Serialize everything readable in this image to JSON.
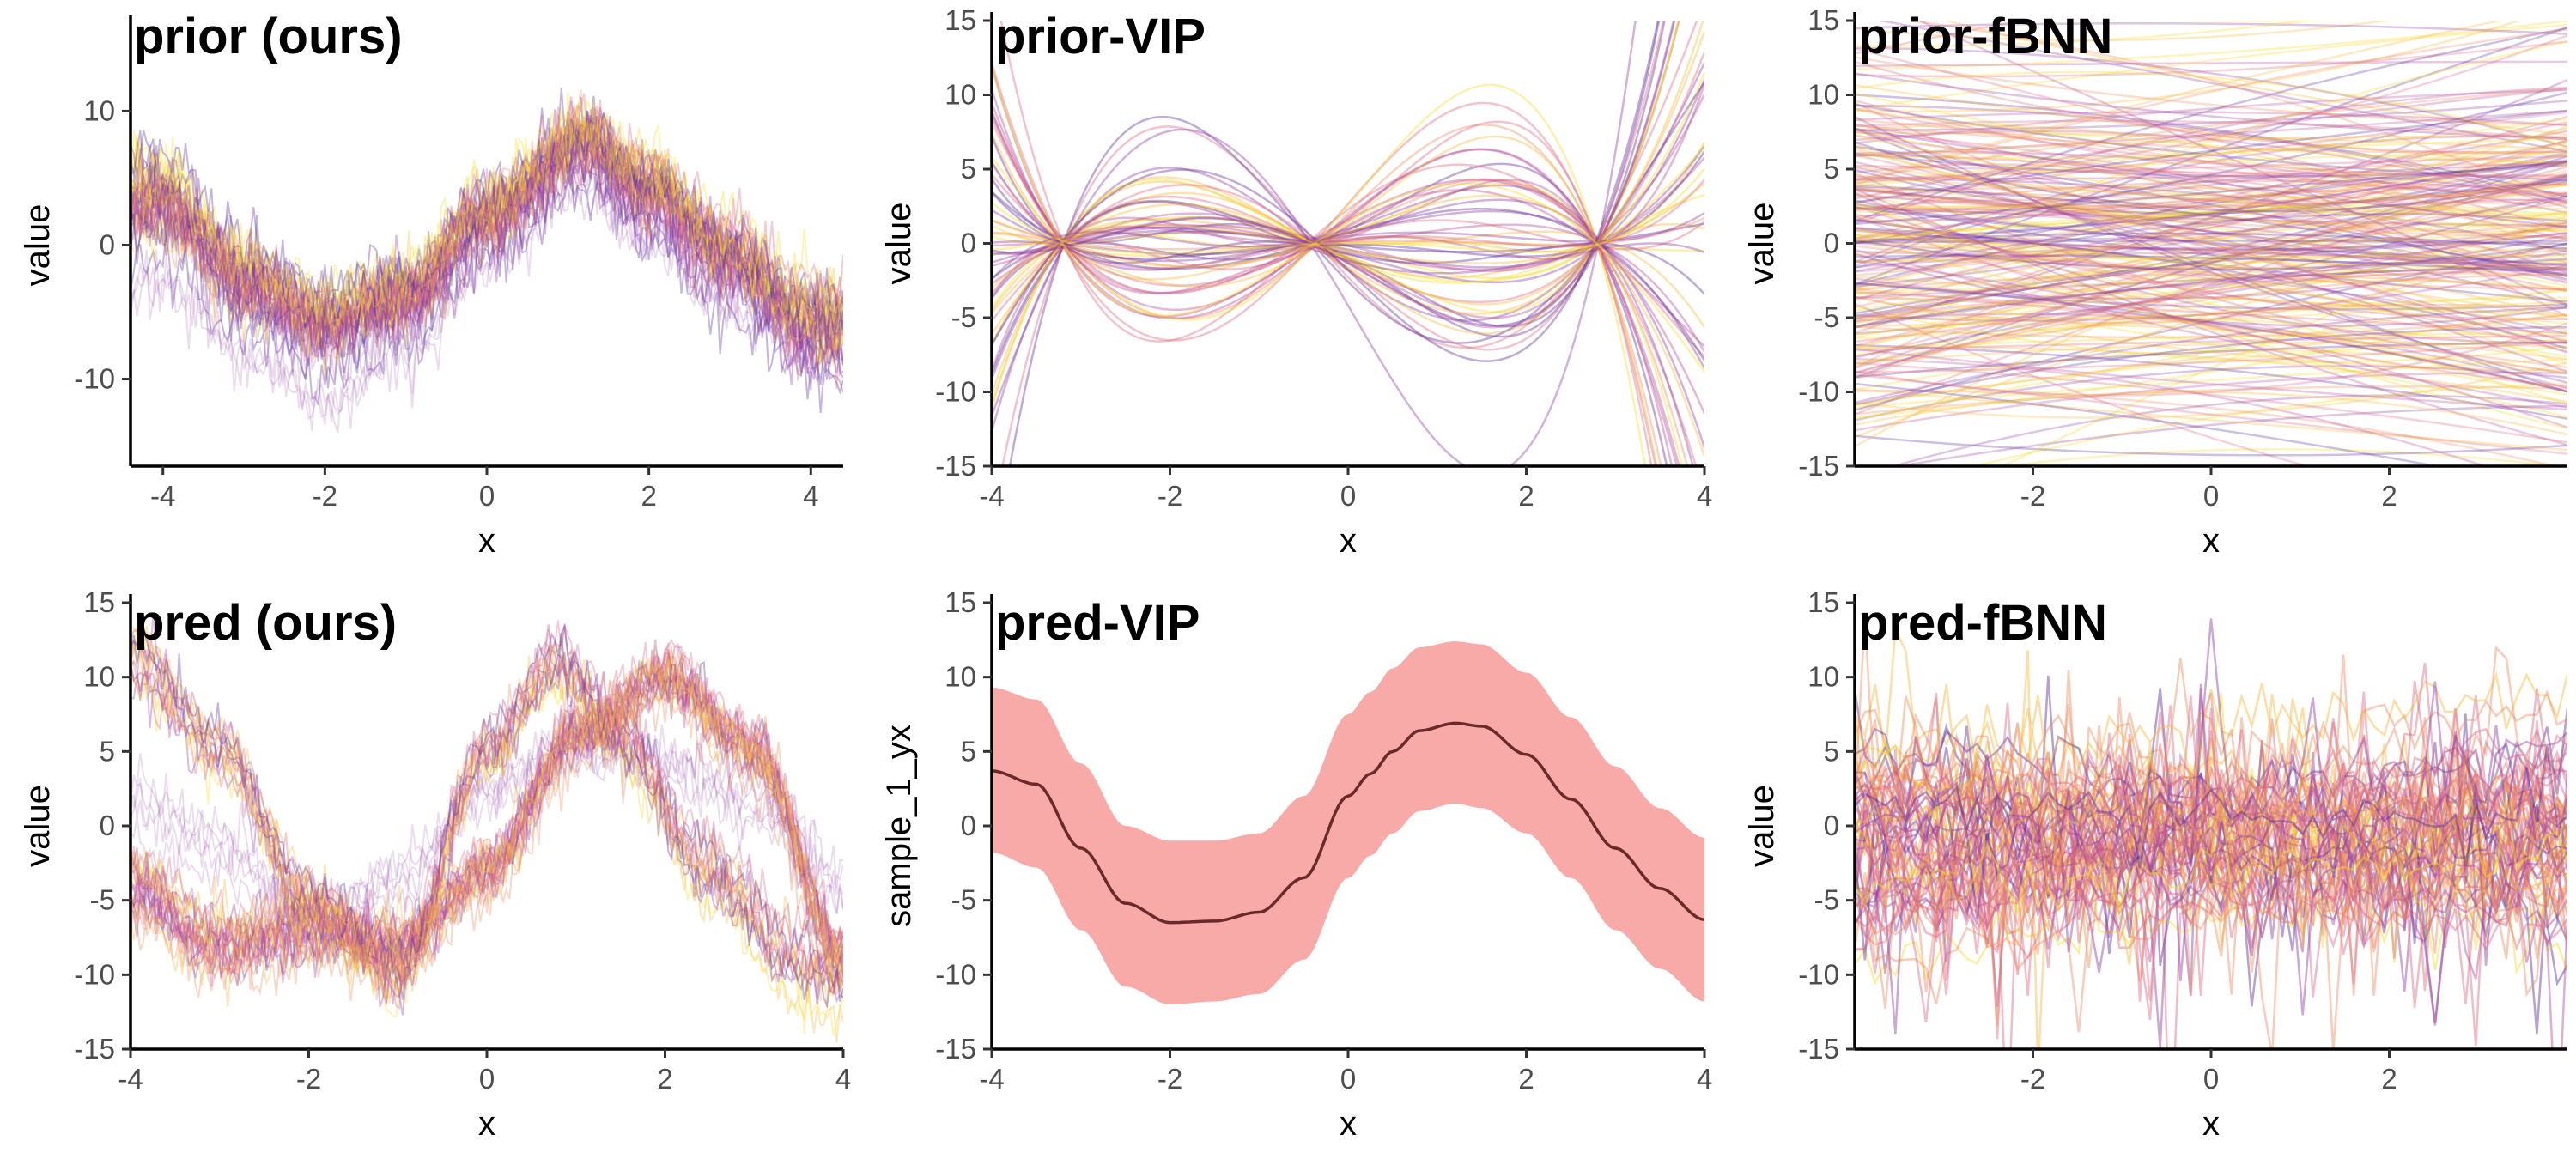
{
  "palette": [
    "#5c2e9e",
    "#8e3fa3",
    "#b94e9a",
    "#de6a83",
    "#f08f62",
    "#f7b83c",
    "#f5dc2a"
  ],
  "band_color": "#f8aaa8",
  "mean_color": "#6b2a2a",
  "chart_data": [
    {
      "id": "prior-ours",
      "type": "line",
      "title": "prior (ours)",
      "xlabel": "x",
      "ylabel": "value",
      "xlim": [
        -4.4,
        4.4
      ],
      "ylim": [
        -16.5,
        16.5
      ],
      "xticks": [
        -4,
        -2,
        0,
        2,
        4
      ],
      "yticks": [
        -10,
        0,
        10
      ],
      "style": "noisy",
      "curves": [
        {
          "x": [
            -4,
            -3,
            -2,
            -1,
            0,
            1.2,
            2,
            3,
            4
          ],
          "y": [
            3,
            -3,
            -6,
            -4,
            2,
            7.5,
            4,
            -1,
            -6
          ],
          "weight": 40
        },
        {
          "x": [
            -4,
            -3,
            -2,
            -1,
            0,
            1.2,
            2,
            3,
            4
          ],
          "y": [
            0,
            -5.5,
            -9.5,
            -6,
            0.5,
            6,
            2,
            -3,
            -7
          ],
          "weight": 5
        }
      ],
      "spread": 2.2,
      "n_samples": 45
    },
    {
      "id": "prior-vip",
      "type": "line",
      "title": "prior-VIP",
      "xlabel": "x",
      "ylabel": "value",
      "xlim": [
        -4,
        4
      ],
      "ylim": [
        -15,
        15
      ],
      "xticks": [
        -4,
        -2,
        0,
        2,
        4
      ],
      "yticks": [
        -15,
        -10,
        -5,
        0,
        5,
        10,
        15
      ],
      "style": "smooth-pinned",
      "pins": [
        -3.2,
        -0.4,
        2.8
      ],
      "n_samples": 60
    },
    {
      "id": "prior-fbnn",
      "type": "line",
      "title": "prior-fBNN",
      "xlabel": "x",
      "ylabel": "value",
      "xlim": [
        -4,
        4
      ],
      "ylim": [
        -15,
        15
      ],
      "xticks": [
        -2,
        0,
        2
      ],
      "yticks": [
        -15,
        -10,
        -5,
        0,
        5,
        10,
        15
      ],
      "style": "near-linear",
      "n_samples": 260
    },
    {
      "id": "pred-ours",
      "type": "line",
      "title": "pred (ours)",
      "xlabel": "x",
      "ylabel": "value",
      "xlim": [
        -4,
        4
      ],
      "ylim": [
        -15,
        15
      ],
      "xticks": [
        -4,
        -2,
        0,
        2,
        4
      ],
      "yticks": [
        -15,
        -10,
        -5,
        0,
        5,
        10,
        15
      ],
      "style": "noisy",
      "curves": [
        {
          "x": [
            -4,
            -3,
            -2,
            -1,
            0,
            0.8,
            1.5,
            2.5,
            3.5,
            4
          ],
          "y": [
            11,
            5,
            -5,
            -10,
            5,
            11,
            6,
            -3,
            -9,
            -10
          ],
          "weight": 20
        },
        {
          "x": [
            -4,
            -3,
            -2,
            -1,
            0,
            1,
            2,
            3,
            4
          ],
          "y": [
            -4,
            -8,
            -7,
            -8,
            -3,
            6,
            10,
            5,
            -9
          ],
          "weight": 20
        },
        {
          "x": [
            -4,
            -3,
            -2,
            -1,
            0,
            1,
            2,
            3,
            4
          ],
          "y": [
            2,
            -1,
            -6,
            -3,
            3,
            6,
            5,
            2,
            -3
          ],
          "weight": 5
        }
      ],
      "spread": 1.6,
      "n_samples": 45
    },
    {
      "id": "pred-vip",
      "type": "area",
      "title": "pred-VIP",
      "xlabel": "x",
      "ylabel": "sample_1_yx",
      "xlim": [
        -4,
        4
      ],
      "ylim": [
        -15,
        15
      ],
      "xticks": [
        -4,
        -2,
        0,
        2,
        4
      ],
      "yticks": [
        -15,
        -10,
        -5,
        0,
        5,
        10,
        15
      ],
      "style": "band",
      "x": [
        -4,
        -3.5,
        -3,
        -2.5,
        -2,
        -1.5,
        -1,
        -0.5,
        0,
        0.25,
        0.5,
        0.8,
        1.2,
        1.5,
        2,
        2.5,
        3,
        3.5,
        4
      ],
      "mean": [
        3.7,
        2.8,
        -1.5,
        -5.2,
        -6.5,
        -6.4,
        -5.8,
        -3.5,
        2.0,
        3.5,
        5.0,
        6.4,
        6.9,
        6.7,
        4.8,
        1.8,
        -1.5,
        -4.2,
        -6.3
      ],
      "lower": [
        -1.8,
        -2.8,
        -7.0,
        -10.8,
        -12.0,
        -11.8,
        -11.3,
        -9.0,
        -3.5,
        -2.0,
        -0.5,
        1.0,
        1.5,
        1.2,
        -0.5,
        -3.5,
        -7.0,
        -9.6,
        -11.8
      ],
      "upper": [
        9.3,
        8.5,
        4.2,
        0.0,
        -1.0,
        -1.0,
        -0.5,
        2.0,
        7.5,
        9.0,
        10.6,
        12.0,
        12.4,
        12.2,
        10.3,
        7.3,
        4.0,
        1.2,
        -0.8
      ]
    },
    {
      "id": "pred-fbnn",
      "type": "line",
      "title": "pred-fBNN",
      "xlabel": "x",
      "ylabel": "value",
      "xlim": [
        -4,
        4
      ],
      "ylim": [
        -15,
        15
      ],
      "xticks": [
        -2,
        0,
        2
      ],
      "yticks": [
        -15,
        -10,
        -5,
        0,
        5,
        10,
        15
      ],
      "style": "jagged",
      "n_samples": 70
    }
  ]
}
